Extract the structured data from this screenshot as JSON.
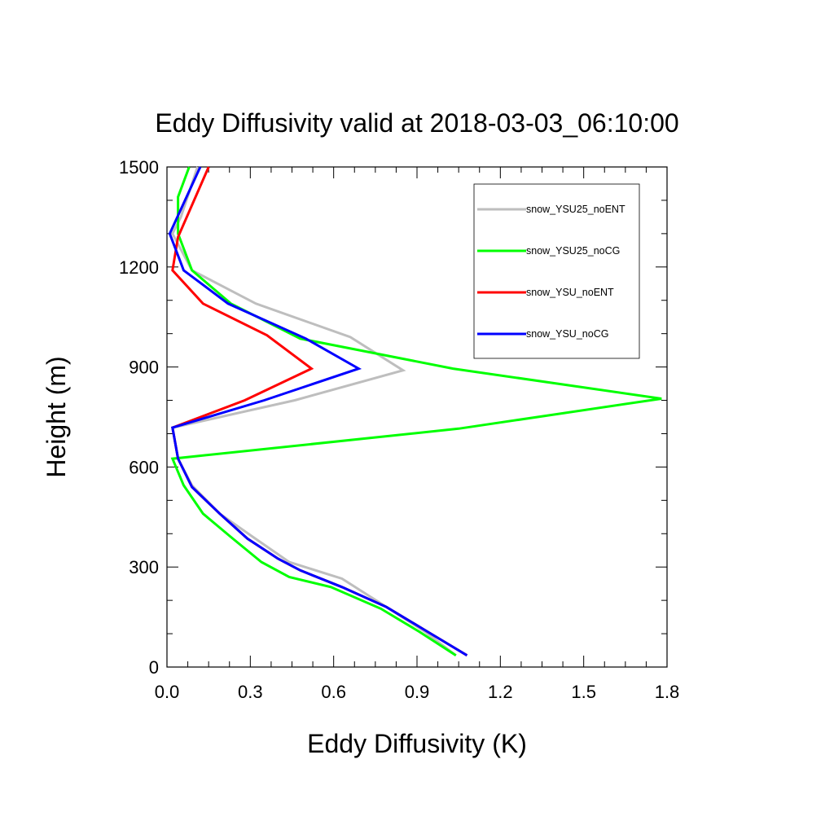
{
  "chart_data": {
    "type": "line",
    "title": "Eddy Diffusivity valid at 2018-03-03_06:10:00",
    "xlabel": "Eddy Diffusivity (K)",
    "ylabel": "Height (m)",
    "xlim": [
      0,
      1.8
    ],
    "ylim": [
      0,
      1500
    ],
    "xticks": [
      "0.0",
      "0.3",
      "0.6",
      "0.9",
      "1.2",
      "1.5",
      "1.8"
    ],
    "yticks": [
      "0",
      "300",
      "600",
      "900",
      "1200",
      "1500"
    ],
    "grid": false,
    "legend_position": "top-right",
    "series": [
      {
        "name": "snow_YSU25_noENT",
        "color": "#bebebe",
        "points": [
          [
            1.04,
            35
          ],
          [
            0.93,
            105
          ],
          [
            0.79,
            180
          ],
          [
            0.63,
            265
          ],
          [
            0.44,
            315
          ],
          [
            0.31,
            390
          ],
          [
            0.19,
            460
          ],
          [
            0.09,
            545
          ],
          [
            0.04,
            625
          ],
          [
            0.02,
            718
          ],
          [
            0.46,
            800
          ],
          [
            0.85,
            890
          ],
          [
            0.66,
            990
          ],
          [
            0.32,
            1090
          ],
          [
            0.09,
            1190
          ],
          [
            0.02,
            1300
          ],
          [
            0.05,
            1350
          ],
          [
            0.11,
            1500
          ]
        ]
      },
      {
        "name": "snow_YSU25_noCG",
        "color": "#00ff00",
        "points": [
          [
            1.04,
            35
          ],
          [
            0.91,
            105
          ],
          [
            0.77,
            175
          ],
          [
            0.59,
            240
          ],
          [
            0.44,
            270
          ],
          [
            0.34,
            315
          ],
          [
            0.23,
            390
          ],
          [
            0.13,
            460
          ],
          [
            0.06,
            545
          ],
          [
            0.02,
            625
          ],
          [
            1.05,
            715
          ],
          [
            1.78,
            805
          ],
          [
            1.03,
            895
          ],
          [
            0.48,
            985
          ],
          [
            0.23,
            1090
          ],
          [
            0.09,
            1190
          ],
          [
            0.04,
            1300
          ],
          [
            0.04,
            1410
          ],
          [
            0.08,
            1500
          ]
        ]
      },
      {
        "name": "snow_YSU_noENT",
        "color": "#ff0000",
        "points": [
          [
            1.08,
            35
          ],
          [
            0.94,
            105
          ],
          [
            0.79,
            180
          ],
          [
            0.63,
            240
          ],
          [
            0.48,
            290
          ],
          [
            0.4,
            325
          ],
          [
            0.29,
            385
          ],
          [
            0.19,
            460
          ],
          [
            0.09,
            540
          ],
          [
            0.04,
            625
          ],
          [
            0.02,
            718
          ],
          [
            0.28,
            800
          ],
          [
            0.52,
            895
          ],
          [
            0.36,
            995
          ],
          [
            0.13,
            1090
          ],
          [
            0.02,
            1190
          ],
          [
            0.04,
            1290
          ],
          [
            0.15,
            1500
          ]
        ]
      },
      {
        "name": "snow_YSU_noCG",
        "color": "#0000ff",
        "points": [
          [
            1.08,
            35
          ],
          [
            0.94,
            105
          ],
          [
            0.79,
            180
          ],
          [
            0.63,
            240
          ],
          [
            0.48,
            290
          ],
          [
            0.4,
            325
          ],
          [
            0.29,
            385
          ],
          [
            0.19,
            460
          ],
          [
            0.09,
            540
          ],
          [
            0.04,
            625
          ],
          [
            0.02,
            718
          ],
          [
            0.35,
            800
          ],
          [
            0.69,
            895
          ],
          [
            0.5,
            985
          ],
          [
            0.22,
            1090
          ],
          [
            0.06,
            1190
          ],
          [
            0.01,
            1300
          ],
          [
            0.12,
            1500
          ]
        ]
      }
    ]
  }
}
